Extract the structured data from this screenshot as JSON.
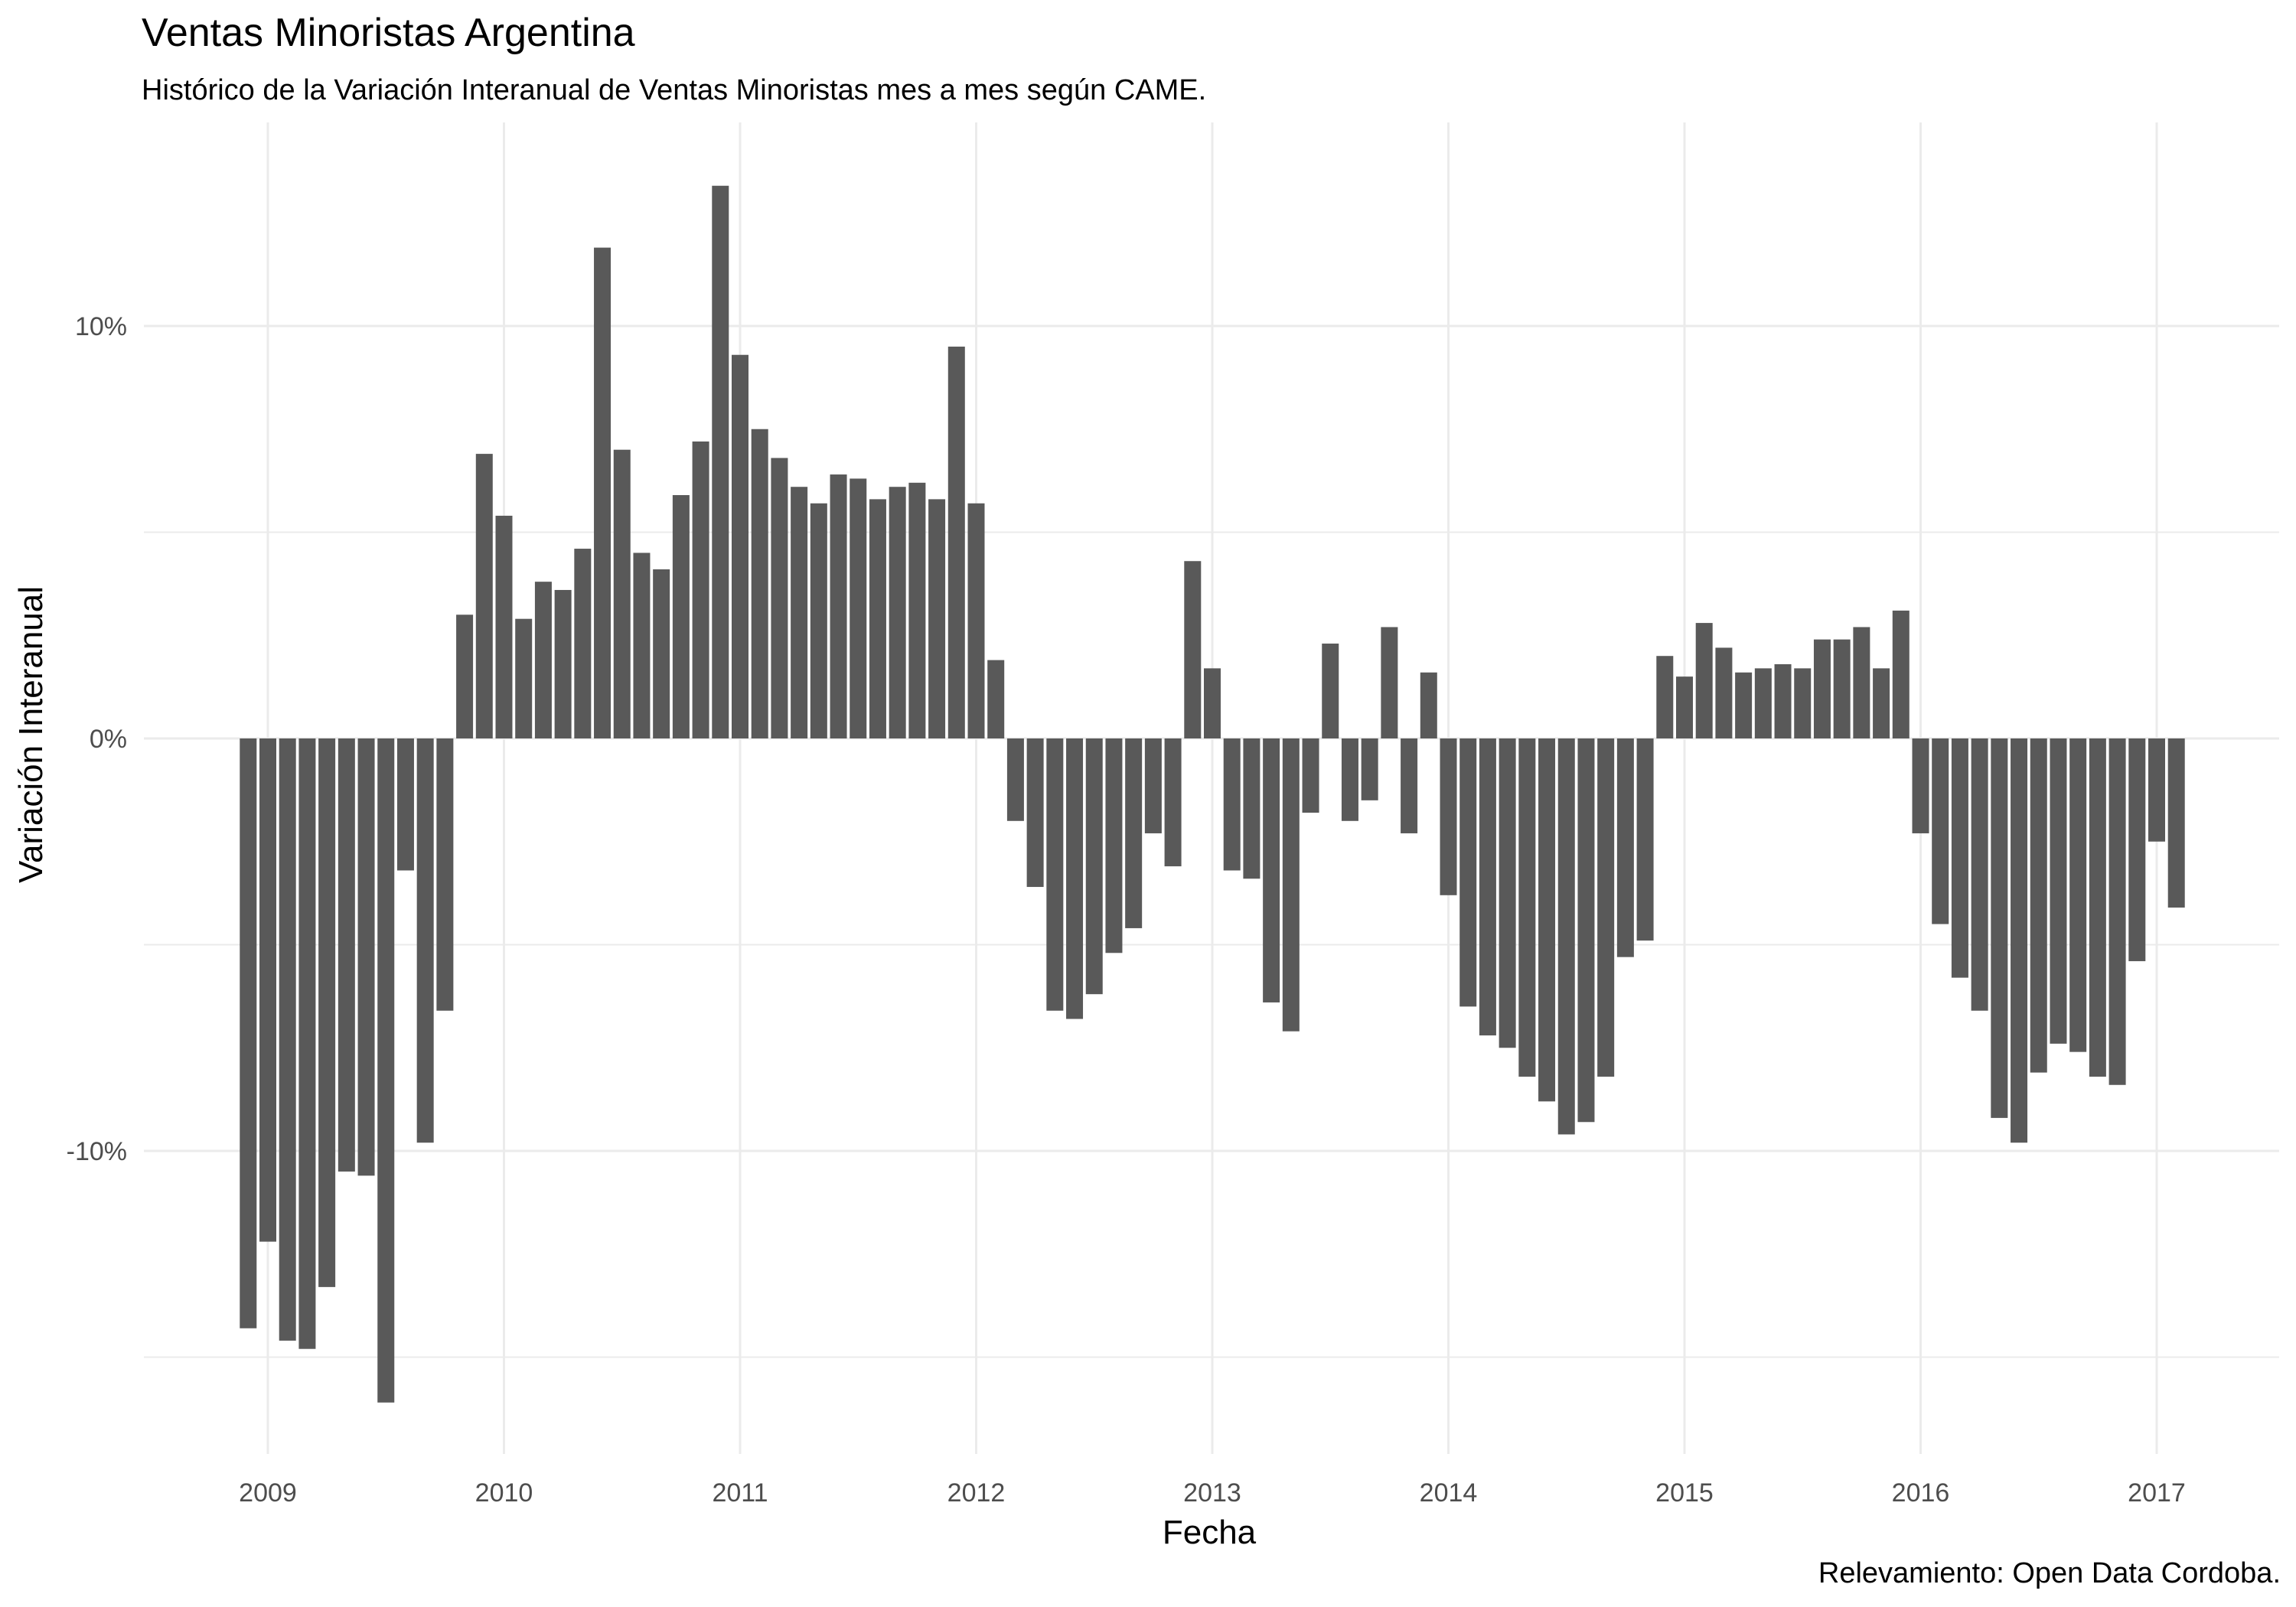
{
  "chart_data": {
    "type": "bar",
    "title": "Ventas Minoristas Argentina",
    "subtitle": "Histórico de la Variación Interanual de Ventas Minoristas mes a mes según CAME.",
    "caption": "Relevamiento: Open Data Cordoba.",
    "xlabel": "Fecha",
    "ylabel": "Variación Interanual",
    "x_tick_labels": [
      "2009",
      "2010",
      "2011",
      "2012",
      "2013",
      "2014",
      "2015",
      "2016",
      "2017"
    ],
    "y_tick_labels": [
      "-10%",
      "0%",
      "10%"
    ],
    "y_ticks": [
      -10,
      0,
      10
    ],
    "y_unit": "%",
    "ylim": [
      -17.4,
      14.8
    ],
    "grid": true,
    "bar_color": "#595959",
    "grid_color": "#ebebeb",
    "x": [
      "2008-12",
      "2009-01",
      "2009-02",
      "2009-03",
      "2009-04",
      "2009-05",
      "2009-06",
      "2009-07",
      "2009-08",
      "2009-09",
      "2009-10",
      "2009-11",
      "2009-12",
      "2010-01",
      "2010-02",
      "2010-03",
      "2010-04",
      "2010-05",
      "2010-06",
      "2010-07",
      "2010-08",
      "2010-09",
      "2010-10",
      "2010-11",
      "2010-12",
      "2011-01",
      "2011-02",
      "2011-03",
      "2011-04",
      "2011-05",
      "2011-06",
      "2011-07",
      "2011-08",
      "2011-09",
      "2011-10",
      "2011-11",
      "2011-12",
      "2012-01",
      "2012-02",
      "2012-03",
      "2012-04",
      "2012-05",
      "2012-06",
      "2012-07",
      "2012-08",
      "2012-09",
      "2012-10",
      "2012-11",
      "2012-12",
      "2013-01",
      "2013-02",
      "2013-03",
      "2013-04",
      "2013-05",
      "2013-06",
      "2013-07",
      "2013-08",
      "2013-09",
      "2013-10",
      "2013-11",
      "2013-12",
      "2014-01",
      "2014-02",
      "2014-03",
      "2014-04",
      "2014-05",
      "2014-06",
      "2014-07",
      "2014-08",
      "2014-09",
      "2014-10",
      "2014-11",
      "2014-12",
      "2015-01",
      "2015-02",
      "2015-03",
      "2015-04",
      "2015-05",
      "2015-06",
      "2015-07",
      "2015-08",
      "2015-09",
      "2015-10",
      "2015-11",
      "2015-12",
      "2016-01",
      "2016-02",
      "2016-03",
      "2016-04",
      "2016-05",
      "2016-06",
      "2016-07",
      "2016-08",
      "2016-09",
      "2016-10",
      "2016-11",
      "2016-12",
      "2017-01",
      "2017-02"
    ],
    "values": [
      -14.3,
      -12.2,
      -14.6,
      -14.8,
      -13.3,
      -10.5,
      -10.6,
      -16.1,
      -3.2,
      -9.8,
      -6.6,
      3.0,
      6.9,
      5.4,
      2.9,
      3.8,
      3.6,
      4.6,
      11.9,
      7.0,
      4.5,
      4.1,
      5.9,
      7.2,
      13.4,
      9.3,
      7.5,
      6.8,
      6.1,
      5.7,
      6.4,
      6.3,
      5.8,
      6.1,
      6.2,
      5.8,
      9.5,
      5.7,
      1.9,
      -2.0,
      -3.6,
      -6.6,
      -6.8,
      -6.2,
      -5.2,
      -4.6,
      -2.3,
      -3.1,
      4.3,
      1.7,
      -3.2,
      -3.4,
      -6.4,
      -7.1,
      -1.8,
      2.3,
      -2.0,
      -1.5,
      2.7,
      -2.3,
      1.6,
      -3.8,
      -6.5,
      -7.2,
      -7.5,
      -8.2,
      -8.8,
      -9.6,
      -9.3,
      -8.2,
      -5.3,
      -4.9,
      2.0,
      1.5,
      2.8,
      2.2,
      1.6,
      1.7,
      1.8,
      1.7,
      2.4,
      2.4,
      2.7,
      1.7,
      3.1,
      -2.3,
      -4.5,
      -5.8,
      -6.6,
      -9.2,
      -9.8,
      -8.1,
      -7.4,
      -7.6,
      -8.2,
      -8.4,
      -5.4,
      -2.5,
      -4.1
    ]
  }
}
